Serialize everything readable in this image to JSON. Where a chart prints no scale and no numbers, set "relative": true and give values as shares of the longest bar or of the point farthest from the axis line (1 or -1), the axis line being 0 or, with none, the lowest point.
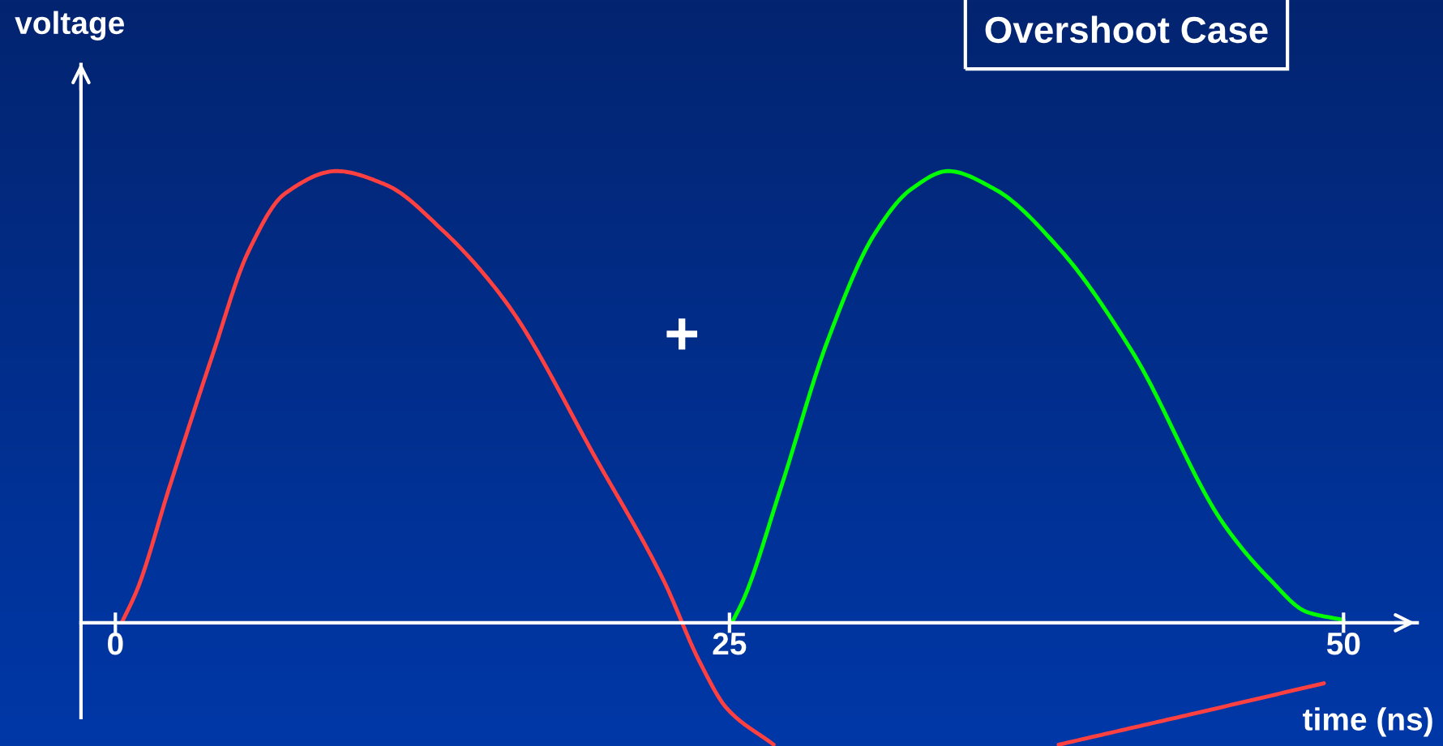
{
  "chart_data": {
    "type": "line",
    "title": "Overshoot Case",
    "xlabel": "time (ns)",
    "ylabel": "voltage",
    "relative": true,
    "xlim": [
      -1.4,
      53
    ],
    "xticks": [
      0,
      25,
      50
    ],
    "annotations": [
      "+"
    ],
    "series": [
      {
        "color": "#ff4040",
        "x": [
          0.26,
          0.9,
          2.2,
          4.0,
          5.4,
          6.9,
          9.0,
          11.0,
          13.3,
          15.9,
          19.6,
          22.3,
          23.8,
          24.9,
          26.8,
          32,
          38.4,
          44.0,
          49.2
        ],
        "values": [
          0,
          0.075,
          0.3,
          0.6,
          0.82,
          0.95,
          1.0,
          0.97,
          0.87,
          0.71,
          0.36,
          0.096,
          -0.088,
          -0.19,
          -0.27,
          null,
          -0.27,
          -0.2,
          -0.134
        ]
      },
      {
        "color": "#00ff00",
        "x": [
          25.1,
          25.6,
          27.1,
          29.0,
          30.9,
          32.4,
          33.9,
          35.8,
          38.4,
          41.4,
          45.1,
          47.0,
          48.5,
          50.0
        ],
        "values": [
          0,
          0.055,
          0.3,
          0.625,
          0.86,
          0.96,
          1.0,
          0.96,
          0.83,
          0.6,
          0.22,
          0.096,
          0.024,
          0.006
        ]
      }
    ],
    "grid": false,
    "legend": false,
    "marker": "none",
    "line_style": "solid"
  }
}
